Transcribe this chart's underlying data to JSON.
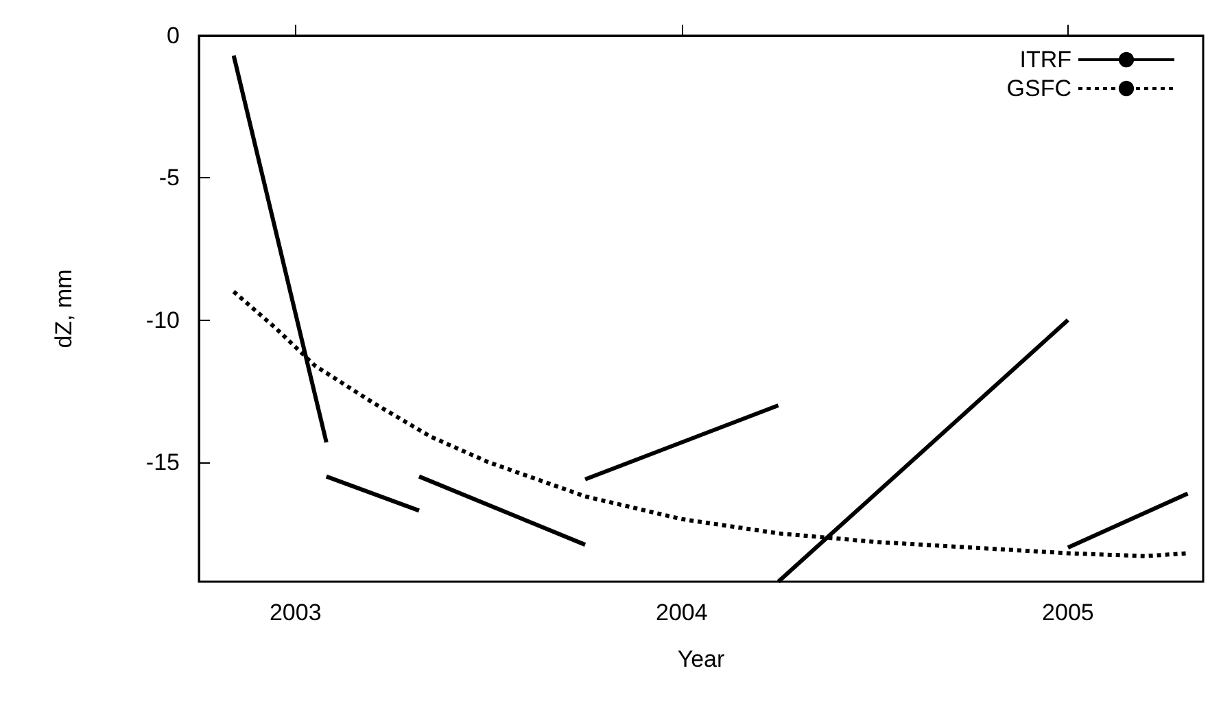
{
  "chart_data": {
    "type": "line",
    "xlabel": "Year",
    "ylabel": "dZ, mm",
    "xlim": [
      2002.75,
      2005.35
    ],
    "xticks": [
      2003,
      2004,
      2005
    ],
    "ylim": [
      -19.2,
      0
    ],
    "yticks": [
      0,
      -5,
      -10,
      -15
    ],
    "grid": false,
    "legend": "top right",
    "marker": "none",
    "series": [
      {
        "name": "ITRF",
        "color": "#000000",
        "line_style": "solid",
        "x": [
          2002.84,
          2003.08,
          null,
          2003.08,
          2003.32,
          null,
          2003.32,
          2003.75,
          null,
          2003.75,
          2004.25,
          null,
          2004.25,
          2005.0,
          null,
          2005.0,
          2005.31
        ],
        "values": [
          -0.7,
          -14.3,
          null,
          -15.5,
          -16.7,
          null,
          -15.5,
          -17.9,
          null,
          -15.6,
          -13.0,
          null,
          -19.2,
          -10.0,
          null,
          -18.0,
          -16.1
        ]
      },
      {
        "name": "GSFC",
        "color": "#000000",
        "line_style": "dotted",
        "x": [
          2002.84,
          2002.95,
          2003.05,
          2003.2,
          2003.35,
          2003.5,
          2003.75,
          2004.0,
          2004.25,
          2004.5,
          2004.75,
          2005.0,
          2005.2,
          2005.31
        ],
        "values": [
          -9.0,
          -10.3,
          -11.6,
          -12.9,
          -14.1,
          -15.0,
          -16.2,
          -17.0,
          -17.5,
          -17.8,
          -18.0,
          -18.2,
          -18.3,
          -18.2
        ]
      }
    ]
  }
}
